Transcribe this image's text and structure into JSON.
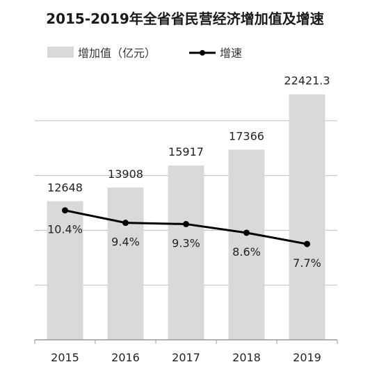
{
  "chart_data": {
    "type": "bar",
    "title": "2015-2019年全省省民营经济增加值及增速",
    "categories": [
      "2015",
      "2016",
      "2017",
      "2018",
      "2019"
    ],
    "series": [
      {
        "name": "增加值（亿元）",
        "type": "bar",
        "values": [
          12648,
          13908,
          15917,
          17366,
          22421.3
        ],
        "labels": [
          "12648",
          "13908",
          "15917",
          "17366",
          "22421.3"
        ],
        "color": "#d9d9d9"
      },
      {
        "name": "增速",
        "type": "line",
        "values": [
          10.4,
          9.4,
          9.3,
          8.6,
          7.7
        ],
        "labels": [
          "10.4%",
          "9.4%",
          "9.3%",
          "8.6%",
          "7.7%"
        ],
        "color": "#000000"
      }
    ],
    "bar_axis_range": [
      0,
      25000
    ],
    "line_axis_range": [
      0,
      22
    ],
    "grid": true,
    "legend_position": "top-left"
  }
}
